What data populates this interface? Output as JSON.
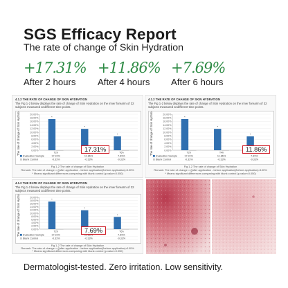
{
  "title": "SGS Efficacy Report",
  "subtitle": "The rate of change of Skin Hydration",
  "stats": [
    {
      "value": "+17.31%",
      "label": "After 2 hours"
    },
    {
      "value": "+11.86%",
      "label": "After 4 hours"
    },
    {
      "value": "+7.69%",
      "label": "After 6 hours"
    }
  ],
  "panels": [
    {
      "heading": "4.1.2   THE RATE OF CHANGE OF SKIN HYDRATION",
      "body": "The Fig 1-2 below displays the rate of change of Skin Hydration on the inner forearm of 32 subjects measured at different time points.",
      "ylabel": "The rate of change of Skin Hydration",
      "callout": "17.31%",
      "caption": "Fig 1-2 The rate of change of Skin Hydration",
      "note1": "Remark: The rate of change = ([after application - before application]/before application)×100%",
      "note2": "* Means significant differences comparing with blank control (p-value<0.050)"
    },
    {
      "heading": "4.1.2   THE RATE OF CHANGE OF SKIN HYDRATION",
      "body": "The Fig 1-2 below displays the rate of change of Skin Hydration on the inner forearm of 32 subjects measured at different time points.",
      "ylabel": "The rate of change of Skin Hydration",
      "callout": "11.86%",
      "caption": "Fig 1-2 The rate of change of Skin Hydration",
      "note1": "Remark: The rate of change = ([after application - before application]/before application)×100%",
      "note2": "* Means significant differences comparing with blank control (p-value<0.050)"
    },
    {
      "heading": "4.1.2   THE RATE OF CHANGE OF SKIN HYDRATION",
      "body": "The Fig 1-2 below displays the rate of change of Skin Hydration on the inner forearm of 32 subjects measured at different time points.",
      "ylabel": "The rate of change of Skin Hydration",
      "callout": "7.69%",
      "caption": "Fig 1-2 The rate of change of Skin Hydration",
      "note1": "Remark: The rate of change = ([after application - before application]/before application)×100%",
      "note2": "* Means significant differences comparing with blank control (p-value<0.050)"
    }
  ],
  "chart_data": {
    "type": "bar",
    "categories": [
      "T2h",
      "T4h",
      "T6h"
    ],
    "yticks": [
      "0.00%",
      "2.00%",
      "4.00%",
      "6.00%",
      "8.00%",
      "10.00%",
      "12.00%",
      "14.00%",
      "16.00%",
      "18.00%",
      "20.00%"
    ],
    "ylim": [
      0,
      20
    ],
    "series": [
      {
        "name": "Evaluation Sample",
        "values": [
          17.31,
          11.86,
          7.69
        ],
        "table_values": [
          "17.31%",
          "11.86%",
          "7.69%"
        ],
        "color": "#2f6fb0"
      },
      {
        "name": "Blank Control",
        "values": [
          -0.33,
          -0.33,
          -0.33
        ],
        "table_values": [
          "-0.33%",
          "-0.33%",
          "-0.33%"
        ],
        "color": "#c9c9c9"
      }
    ],
    "significance_marker": "*"
  },
  "footer": "Dermatologist-tested. Zero irritation. Low sensitivity.",
  "colors": {
    "accent": "#2e8b45",
    "callout_border": "#d0202a",
    "bar": "#2f6fb0"
  }
}
